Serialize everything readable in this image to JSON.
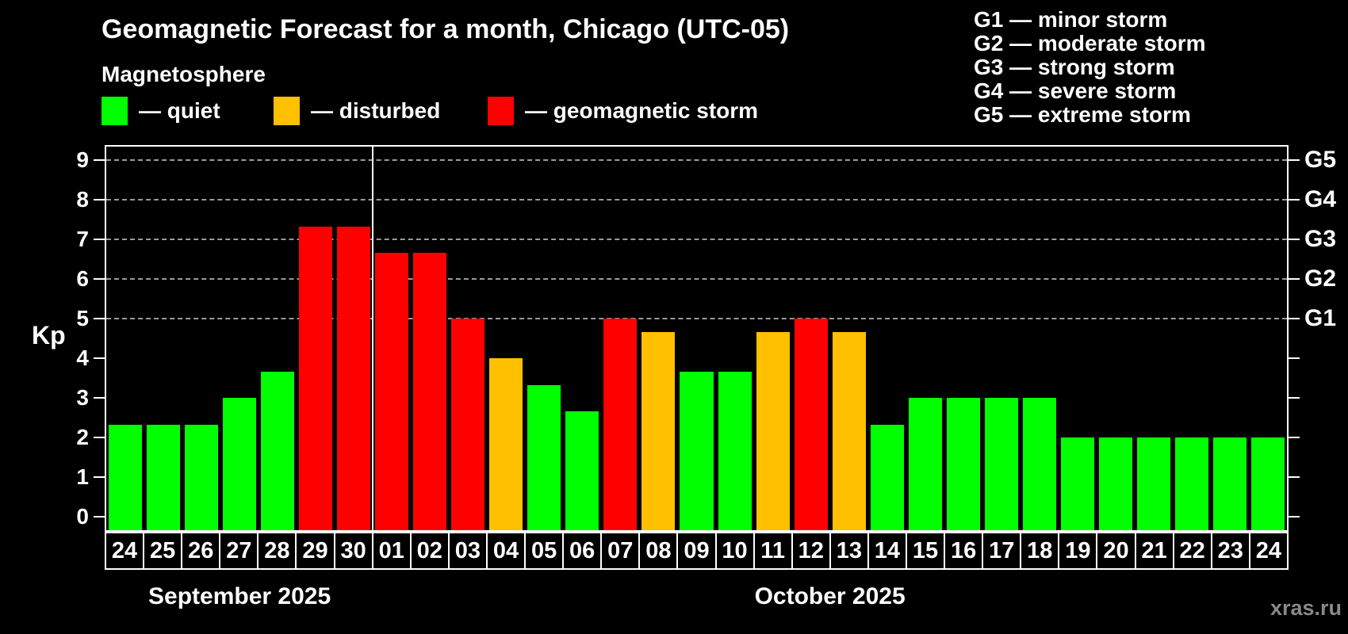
{
  "title": "Geomagnetic Forecast for a month, Chicago (UTC-05)",
  "subtitle": "Magnetosphere",
  "status_legend": [
    {
      "name": "quiet",
      "label": "— quiet",
      "color": "#00ff00"
    },
    {
      "name": "disturbed",
      "label": "— disturbed",
      "color": "#ffc000"
    },
    {
      "name": "storm",
      "label": "— geomagnetic storm",
      "color": "#ff0000"
    }
  ],
  "g_scale_legend": [
    "G1 — minor storm",
    "G2 — moderate storm",
    "G3 — strong storm",
    "G4 — severe storm",
    "G5 — extreme storm"
  ],
  "watermark": "xras.ru",
  "colors": {
    "quiet": "#00ff00",
    "disturbed": "#ffc000",
    "storm": "#ff0000",
    "background": "#000000",
    "text": "#ffffff",
    "grid": "#9a9a9a",
    "watermark": "#888888"
  },
  "chart_data": {
    "type": "bar",
    "title": "Geomagnetic Forecast for a month, Chicago (UTC-05)",
    "xlabel": "",
    "ylabel": "Kp",
    "ylim": [
      0,
      9
    ],
    "y_ticks": [
      0,
      1,
      2,
      3,
      4,
      5,
      6,
      7,
      8,
      9
    ],
    "gridlines_at": [
      5,
      6,
      7,
      8,
      9
    ],
    "grid": "dashed horizontal at G-storm levels only",
    "legend_position": "top-left statuses, top-right G scale",
    "right_axis_labels": [
      {
        "kp": 5,
        "label": "G1"
      },
      {
        "kp": 6,
        "label": "G2"
      },
      {
        "kp": 7,
        "label": "G3"
      },
      {
        "kp": 8,
        "label": "G4"
      },
      {
        "kp": 9,
        "label": "G5"
      }
    ],
    "months": [
      {
        "label": "September 2025",
        "days": 7
      },
      {
        "label": "October 2025",
        "days": 24
      }
    ],
    "categories": [
      "24",
      "25",
      "26",
      "27",
      "28",
      "29",
      "30",
      "01",
      "02",
      "03",
      "04",
      "05",
      "06",
      "07",
      "08",
      "09",
      "10",
      "11",
      "12",
      "13",
      "14",
      "15",
      "16",
      "17",
      "18",
      "19",
      "20",
      "21",
      "22",
      "23",
      "24"
    ],
    "values": [
      2.33,
      2.33,
      2.33,
      3,
      3.67,
      7.33,
      7.33,
      6.67,
      6.67,
      5,
      4,
      3.33,
      2.67,
      5,
      4.67,
      3.67,
      3.67,
      4.67,
      5,
      4.67,
      2.33,
      3,
      3,
      3,
      3,
      2,
      2,
      2,
      2,
      2,
      2
    ],
    "statuses": [
      "quiet",
      "quiet",
      "quiet",
      "quiet",
      "quiet",
      "storm",
      "storm",
      "storm",
      "storm",
      "storm",
      "disturbed",
      "quiet",
      "quiet",
      "storm",
      "disturbed",
      "quiet",
      "quiet",
      "disturbed",
      "storm",
      "disturbed",
      "quiet",
      "quiet",
      "quiet",
      "quiet",
      "quiet",
      "quiet",
      "quiet",
      "quiet",
      "quiet",
      "quiet",
      "quiet"
    ]
  }
}
